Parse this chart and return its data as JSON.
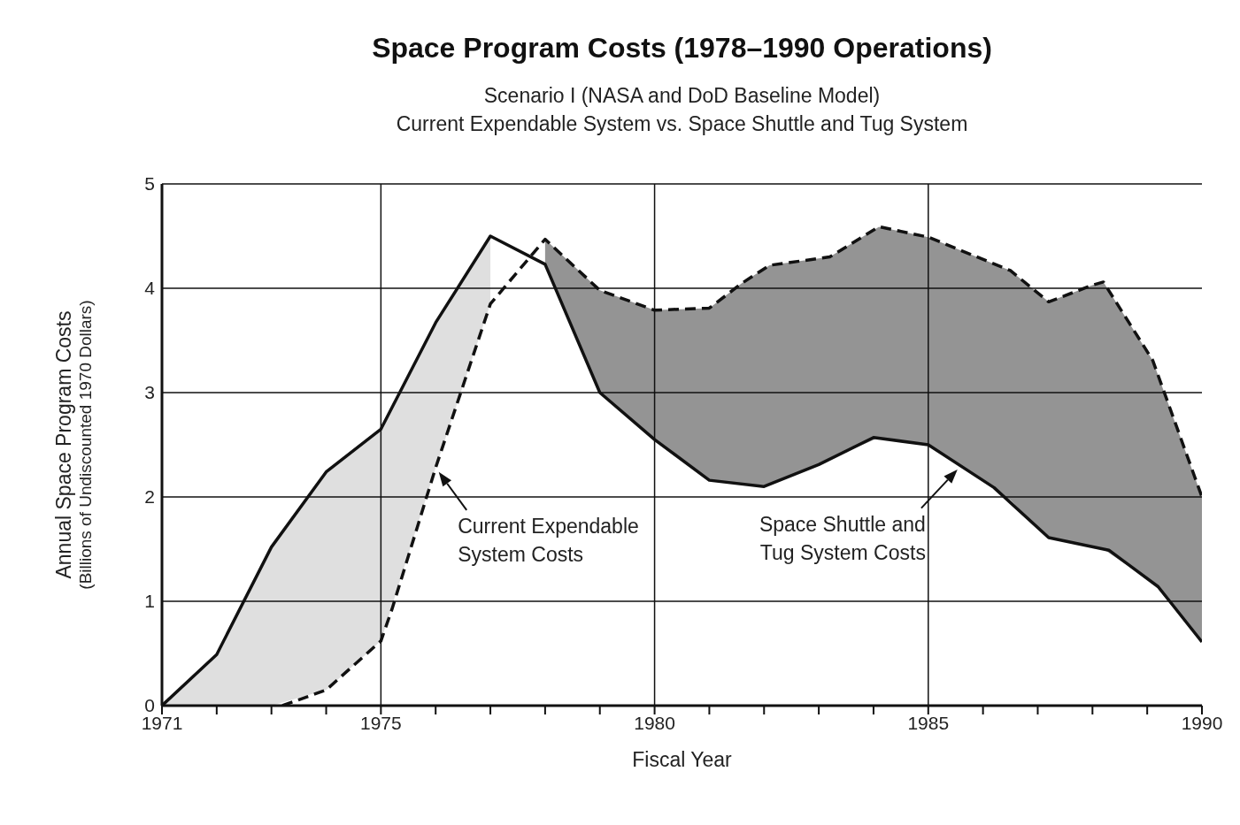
{
  "chart_data": {
    "type": "line",
    "title": "Space Program Costs (1978–1990 Operations)",
    "subtitle": "Scenario I (NASA and DoD Baseline Model)\nCurrent Expendable System vs. Space Shuttle and Tug System",
    "xlabel": "Fiscal Year",
    "ylabel": "Annual Space Program Costs\n(Billions of Undiscounted 1970 Dollars)",
    "series": [
      {
        "color": "#111111",
        "line_style": "solid",
        "x": [
          1971,
          1972,
          1973,
          1974,
          1975,
          1976,
          1977,
          1978,
          1979,
          1980,
          1981,
          1982,
          1983,
          1984,
          1985,
          1986.2,
          1987.2,
          1988.3,
          1989.2,
          1990
        ],
        "values": [
          0,
          0.49,
          1.52,
          2.24,
          2.65,
          3.67,
          4.5,
          4.23,
          3.0,
          2.55,
          2.16,
          2.1,
          2.31,
          2.57,
          2.5,
          2.09,
          1.61,
          1.49,
          1.14,
          0.61
        ],
        "lower": [
          0,
          0,
          0,
          0.15,
          0.62,
          2.28,
          3.85,
          null,
          null,
          null,
          null,
          null,
          null,
          null,
          null,
          null,
          null,
          null,
          null,
          null
        ],
        "upper": [
          0,
          0.49,
          1.52,
          2.24,
          2.65,
          3.67,
          4.5,
          null,
          null,
          null,
          null,
          null,
          null,
          null,
          null,
          null,
          null,
          null,
          null,
          null
        ]
      },
      {
        "color": "#111111",
        "line_style": "dashed",
        "x": [
          1973.2,
          1974,
          1975,
          1975.2,
          1976,
          1977,
          1978,
          1979,
          1980,
          1981,
          1981.6,
          1982.1,
          1983.2,
          1984.1,
          1985,
          1986.5,
          1987.2,
          1988,
          1988.2,
          1989.1,
          1990
        ],
        "values": [
          0,
          0.15,
          0.62,
          0.92,
          2.28,
          3.85,
          4.47,
          3.98,
          3.79,
          3.81,
          4.05,
          4.22,
          4.3,
          4.59,
          4.49,
          4.17,
          3.87,
          4.03,
          4.06,
          3.31,
          2.0
        ],
        "lower": [
          null,
          null,
          null,
          null,
          null,
          null,
          4.23,
          3.0,
          2.55,
          2.16,
          2.12,
          2.11,
          2.36,
          2.57,
          2.5,
          1.97,
          1.61,
          1.52,
          1.5,
          1.18,
          0.61
        ],
        "upper": [
          null,
          null,
          null,
          null,
          null,
          null,
          4.47,
          3.98,
          3.79,
          3.81,
          4.05,
          4.22,
          4.3,
          4.59,
          4.49,
          4.17,
          3.87,
          4.03,
          4.06,
          3.31,
          2.0
        ]
      }
    ],
    "annotations": [
      {
        "text": "Current Expendable\nSystem Costs",
        "x": 1976,
        "y": 2.28
      },
      {
        "text": "Space Shuttle and\nTug System Costs",
        "x": 1985.6,
        "y": 2.3
      }
    ],
    "xlim": [
      1971,
      1990
    ],
    "xticks": [
      1971,
      {
        "value": 1972,
        "label": null
      },
      {
        "value": 1973,
        "label": null
      },
      {
        "value": 1974,
        "label": null
      },
      1975,
      {
        "value": 1976,
        "label": null
      },
      {
        "value": 1977,
        "label": null
      },
      {
        "value": 1978,
        "label": null
      },
      {
        "value": 1979,
        "label": null
      },
      1980,
      {
        "value": 1981,
        "label": null
      },
      {
        "value": 1982,
        "label": null
      },
      {
        "value": 1983,
        "label": null
      },
      {
        "value": 1984,
        "label": null
      },
      1985,
      {
        "value": 1986,
        "label": null
      },
      {
        "value": 1987,
        "label": null
      },
      {
        "value": 1988,
        "label": null
      },
      {
        "value": 1989,
        "label": null
      },
      1990
    ],
    "ylim": [
      0,
      5
    ],
    "yticks": [
      0,
      1,
      2,
      3,
      4,
      5
    ],
    "grid": true
  }
}
